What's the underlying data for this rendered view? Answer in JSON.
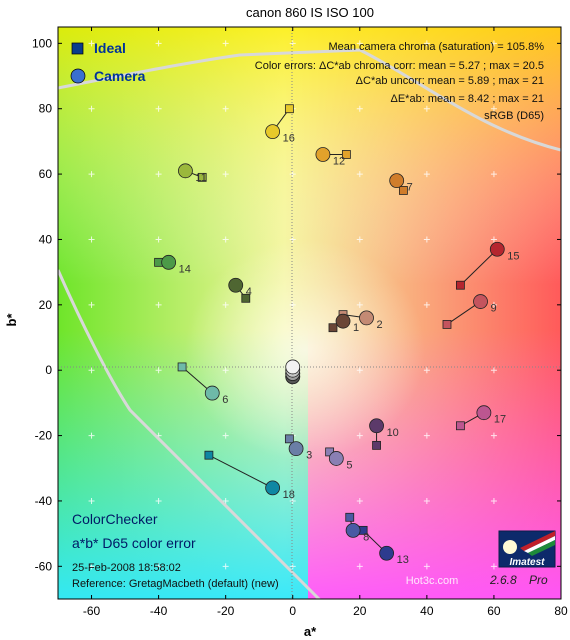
{
  "title": "canon 860 IS ISO 100",
  "axes": {
    "xlabel": "a*",
    "ylabel": "b*"
  },
  "legend": {
    "ideal": "Ideal",
    "camera": "Camera"
  },
  "info_lines": [
    "Mean camera chroma (saturation) = 105.8%",
    "Color errors: ΔC*ab chroma corr:  mean = 5.27 ;  max = 20.5",
    "ΔC*ab uncorr:  mean = 5.89 ;  max = 21",
    "ΔE*ab:  mean = 8.42 ;  max = 21",
    "sRGB (D65)"
  ],
  "block": {
    "line1": "ColorChecker",
    "line2": "a*b* D65 color error",
    "line3": "25-Feb-2008 18:58:02",
    "line4": "Reference: GretagMacbeth (default) (new)"
  },
  "watermark": "Hot3c.com",
  "logo": {
    "text": "Imatest",
    "version": "2.6.8",
    "edition": "Pro"
  },
  "chart_data": {
    "type": "scatter",
    "title": "canon 860 IS ISO 100",
    "xlabel": "a*",
    "ylabel": "b*",
    "xlim": [
      -70,
      80
    ],
    "ylim": [
      -70,
      105
    ],
    "xticks": [
      -60,
      -40,
      -20,
      0,
      20,
      40,
      60,
      80
    ],
    "yticks": [
      -60,
      -40,
      -20,
      0,
      20,
      40,
      60,
      80,
      100
    ],
    "grid": true,
    "legend_position": "top-left",
    "series": [
      {
        "name": "Ideal",
        "marker": "square"
      },
      {
        "name": "Camera",
        "marker": "circle"
      }
    ],
    "patches": [
      {
        "id": 1,
        "ideal": [
          12,
          13
        ],
        "camera": [
          15,
          15
        ],
        "color": "#6b4636"
      },
      {
        "id": 2,
        "ideal": [
          15,
          17
        ],
        "camera": [
          22,
          16
        ],
        "color": "#c48a74"
      },
      {
        "id": 3,
        "ideal": [
          -1,
          -21
        ],
        "camera": [
          1,
          -24
        ],
        "color": "#6a7ea6"
      },
      {
        "id": 4,
        "ideal": [
          -14,
          22
        ],
        "camera": [
          -17,
          26
        ],
        "color": "#4f6632"
      },
      {
        "id": 5,
        "ideal": [
          11,
          -25
        ],
        "camera": [
          13,
          -27
        ],
        "color": "#8a7fb3"
      },
      {
        "id": 6,
        "ideal": [
          -33,
          1
        ],
        "camera": [
          -24,
          -7
        ],
        "color": "#6ebaa8"
      },
      {
        "id": 7,
        "ideal": [
          33,
          55
        ],
        "camera": [
          31,
          58
        ],
        "color": "#d07d2b"
      },
      {
        "id": 8,
        "ideal": [
          17,
          -45
        ],
        "camera": [
          18,
          -49
        ],
        "color": "#4a5aa3"
      },
      {
        "id": 9,
        "ideal": [
          46,
          14
        ],
        "camera": [
          56,
          21
        ],
        "color": "#c4545e"
      },
      {
        "id": 10,
        "ideal": [
          25,
          -23
        ],
        "camera": [
          25,
          -17
        ],
        "color": "#5c3a6a"
      },
      {
        "id": 11,
        "ideal": [
          -27,
          59
        ],
        "camera": [
          -32,
          61
        ],
        "color": "#9bb83c"
      },
      {
        "id": 12,
        "ideal": [
          16,
          66
        ],
        "camera": [
          9,
          66
        ],
        "color": "#e2a22b"
      },
      {
        "id": 13,
        "ideal": [
          21,
          -49
        ],
        "camera": [
          28,
          -56
        ],
        "color": "#2d3b8e"
      },
      {
        "id": 14,
        "ideal": [
          -40,
          33
        ],
        "camera": [
          -37,
          33
        ],
        "color": "#4c9a48"
      },
      {
        "id": 15,
        "ideal": [
          50,
          26
        ],
        "camera": [
          61,
          37
        ],
        "color": "#b5262f"
      },
      {
        "id": 16,
        "ideal": [
          -1,
          80
        ],
        "camera": [
          -6,
          73
        ],
        "color": "#e8c92a"
      },
      {
        "id": 17,
        "ideal": [
          50,
          -17
        ],
        "camera": [
          57,
          -13
        ],
        "color": "#bc5690"
      },
      {
        "id": 18,
        "ideal": [
          -25,
          -26
        ],
        "camera": [
          -6,
          -36
        ],
        "color": "#0f87a3"
      },
      {
        "id": 19,
        "ideal": [
          0,
          0
        ],
        "camera": [
          0,
          1
        ],
        "color": "#f2f2f2"
      },
      {
        "id": 20,
        "ideal": [
          0,
          0
        ],
        "camera": [
          0,
          0
        ],
        "color": "#c8c8c8"
      },
      {
        "id": 21,
        "ideal": [
          0,
          0
        ],
        "camera": [
          0,
          -1
        ],
        "color": "#a0a0a0"
      },
      {
        "id": 22,
        "ideal": [
          0,
          0
        ],
        "camera": [
          0,
          -1
        ],
        "color": "#7a7a7a"
      },
      {
        "id": 23,
        "ideal": [
          0,
          0
        ],
        "camera": [
          0,
          -2
        ],
        "color": "#555555"
      },
      {
        "id": 24,
        "ideal": [
          0,
          0
        ],
        "camera": [
          0,
          -2
        ],
        "color": "#343434"
      }
    ],
    "labeled_patches": [
      1,
      2,
      3,
      4,
      5,
      6,
      7,
      8,
      9,
      10,
      11,
      12,
      13,
      14,
      15,
      16,
      17,
      18
    ]
  }
}
